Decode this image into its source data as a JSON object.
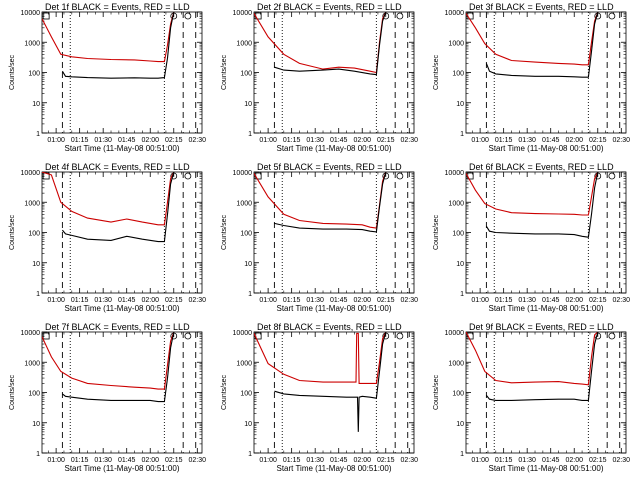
{
  "figure": {
    "colors": {
      "events": "#000000",
      "lld": "#cc0000",
      "background": "#ffffff"
    },
    "ytick_labels": [
      "1",
      "10",
      "100",
      "1000",
      "10000"
    ],
    "xtick_labels": [
      "01:00",
      "01:15",
      "01:30",
      "01:45",
      "02:00",
      "02:15",
      "02:30"
    ]
  },
  "chart_data": [
    {
      "type": "line",
      "title": "Det 1f BLACK = Events, RED = LLD",
      "xlabel": "Start Time (11-May-08 00:51:00)",
      "ylabel": "Counts/sec",
      "yscale": "log",
      "ylim": [
        1,
        10000
      ],
      "xlim": [
        "00:51",
        "02:33"
      ],
      "grid": false,
      "dashed_vlines": [
        "01:04",
        "02:21",
        "02:29"
      ],
      "dotted_vlines": [
        "01:09",
        "02:09"
      ],
      "box_marker": "00:53",
      "circle_markers": [
        "02:15",
        "02:24"
      ],
      "series": [
        {
          "name": "LLD",
          "x": [
            "00:51",
            "00:57",
            "01:03",
            "01:10",
            "01:20",
            "01:35",
            "01:50",
            "02:00",
            "02:05",
            "02:09",
            "02:11",
            "02:13",
            "02:15"
          ],
          "y": [
            6000,
            1500,
            400,
            330,
            290,
            270,
            260,
            240,
            230,
            230,
            800,
            4000,
            10000
          ]
        },
        {
          "name": "Events",
          "x": [
            "01:04",
            "01:06",
            "01:10",
            "01:20",
            "01:35",
            "01:50",
            "02:00",
            "02:05",
            "02:09",
            "02:11",
            "02:13",
            "02:15"
          ],
          "y": [
            110,
            75,
            72,
            68,
            65,
            67,
            65,
            65,
            68,
            300,
            3000,
            10000
          ]
        }
      ]
    },
    {
      "type": "line",
      "title": "Det 2f BLACK = Events, RED = LLD",
      "xlabel": "Start Time (11-May-08 00:51:00)",
      "ylabel": "Counts/sec",
      "yscale": "log",
      "ylim": [
        1,
        10000
      ],
      "xlim": [
        "00:51",
        "02:33"
      ],
      "grid": false,
      "dashed_vlines": [
        "01:04",
        "02:21",
        "02:29"
      ],
      "dotted_vlines": [
        "01:09",
        "02:09"
      ],
      "box_marker": "00:53",
      "circle_markers": [
        "02:15",
        "02:24"
      ],
      "series": [
        {
          "name": "LLD",
          "x": [
            "00:51",
            "01:00",
            "01:10",
            "01:20",
            "01:35",
            "01:45",
            "01:55",
            "02:05",
            "02:09",
            "02:11",
            "02:13",
            "02:15"
          ],
          "y": [
            9000,
            1500,
            400,
            200,
            130,
            150,
            140,
            110,
            100,
            1000,
            6000,
            10000
          ]
        },
        {
          "name": "Events",
          "x": [
            "01:04",
            "01:10",
            "01:20",
            "01:35",
            "01:45",
            "01:55",
            "02:05",
            "02:09",
            "02:11",
            "02:13",
            "02:15"
          ],
          "y": [
            150,
            120,
            110,
            120,
            130,
            110,
            90,
            85,
            800,
            5000,
            10000
          ]
        }
      ]
    },
    {
      "type": "line",
      "title": "Det 3f BLACK = Events, RED = LLD",
      "xlabel": "Start Time (11-May-08 00:51:00)",
      "ylabel": "Counts/sec",
      "yscale": "log",
      "ylim": [
        1,
        10000
      ],
      "xlim": [
        "00:51",
        "02:33"
      ],
      "grid": false,
      "dashed_vlines": [
        "01:04",
        "02:21",
        "02:29"
      ],
      "dotted_vlines": [
        "01:09",
        "02:09"
      ],
      "box_marker": "00:53",
      "circle_markers": [
        "02:15",
        "02:24"
      ],
      "series": [
        {
          "name": "LLD",
          "x": [
            "00:51",
            "00:57",
            "01:03",
            "01:10",
            "01:20",
            "01:35",
            "01:50",
            "02:00",
            "02:05",
            "02:09",
            "02:11",
            "02:13",
            "02:15"
          ],
          "y": [
            9000,
            3000,
            900,
            400,
            250,
            220,
            200,
            190,
            180,
            180,
            1000,
            5000,
            10000
          ]
        },
        {
          "name": "Events",
          "x": [
            "01:04",
            "01:06",
            "01:10",
            "01:20",
            "01:35",
            "01:50",
            "02:00",
            "02:05",
            "02:09",
            "02:11",
            "02:13",
            "02:15"
          ],
          "y": [
            200,
            110,
            90,
            80,
            75,
            75,
            72,
            70,
            70,
            500,
            4000,
            10000
          ]
        }
      ]
    },
    {
      "type": "line",
      "title": "Det 4f BLACK = Events, RED = LLD",
      "xlabel": "Start Time (11-May-08 00:51:00)",
      "ylabel": "Counts/sec",
      "yscale": "log",
      "ylim": [
        1,
        10000
      ],
      "xlim": [
        "00:51",
        "02:33"
      ],
      "grid": false,
      "dashed_vlines": [
        "01:04",
        "02:21",
        "02:29"
      ],
      "dotted_vlines": [
        "01:09",
        "02:09"
      ],
      "box_marker": "00:53",
      "circle_markers": [
        "02:15",
        "02:24"
      ],
      "series": [
        {
          "name": "LLD",
          "x": [
            "00:51",
            "00:57",
            "01:03",
            "01:10",
            "01:20",
            "01:35",
            "01:45",
            "01:55",
            "02:05",
            "02:09",
            "02:11",
            "02:13",
            "02:15"
          ],
          "y": [
            10000,
            8000,
            1000,
            500,
            300,
            220,
            280,
            220,
            180,
            180,
            1000,
            6000,
            10000
          ]
        },
        {
          "name": "Events",
          "x": [
            "01:04",
            "01:06",
            "01:10",
            "01:20",
            "01:35",
            "01:45",
            "01:55",
            "02:05",
            "02:09",
            "02:11",
            "02:13",
            "02:15"
          ],
          "y": [
            120,
            90,
            80,
            60,
            55,
            75,
            60,
            50,
            50,
            400,
            4000,
            10000
          ]
        }
      ]
    },
    {
      "type": "line",
      "title": "Det 5f BLACK = Events, RED = LLD",
      "xlabel": "Start Time (11-May-08 00:51:00)",
      "ylabel": "Counts/sec",
      "yscale": "log",
      "ylim": [
        1,
        10000
      ],
      "xlim": [
        "00:51",
        "02:33"
      ],
      "grid": false,
      "dashed_vlines": [
        "01:04",
        "02:21",
        "02:29"
      ],
      "dotted_vlines": [
        "01:09",
        "02:09"
      ],
      "box_marker": "00:53",
      "circle_markers": [
        "02:15",
        "02:24"
      ],
      "series": [
        {
          "name": "LLD",
          "x": [
            "00:51",
            "01:00",
            "01:10",
            "01:20",
            "01:35",
            "01:50",
            "02:00",
            "02:05",
            "02:09",
            "02:11",
            "02:13",
            "02:15"
          ],
          "y": [
            9000,
            1500,
            400,
            250,
            200,
            190,
            180,
            150,
            140,
            800,
            5000,
            10000
          ]
        },
        {
          "name": "Events",
          "x": [
            "01:04",
            "01:10",
            "01:20",
            "01:35",
            "01:50",
            "02:00",
            "02:05",
            "02:09",
            "02:11",
            "02:13",
            "02:15"
          ],
          "y": [
            200,
            170,
            140,
            130,
            130,
            125,
            110,
            105,
            700,
            4000,
            10000
          ]
        }
      ]
    },
    {
      "type": "line",
      "title": "Det 6f BLACK = Events, RED = LLD",
      "xlabel": "Start Time (11-May-08 00:51:00)",
      "ylabel": "Counts/sec",
      "yscale": "log",
      "ylim": [
        1,
        10000
      ],
      "xlim": [
        "00:51",
        "02:33"
      ],
      "grid": false,
      "dashed_vlines": [
        "01:04",
        "02:21",
        "02:29"
      ],
      "dotted_vlines": [
        "01:09",
        "02:09"
      ],
      "box_marker": "00:53",
      "circle_markers": [
        "02:15",
        "02:24"
      ],
      "series": [
        {
          "name": "LLD",
          "x": [
            "00:51",
            "00:57",
            "01:03",
            "01:10",
            "01:20",
            "01:35",
            "01:50",
            "02:00",
            "02:05",
            "02:09",
            "02:11",
            "02:13",
            "02:15"
          ],
          "y": [
            9000,
            2500,
            900,
            600,
            450,
            420,
            410,
            400,
            380,
            380,
            1500,
            6000,
            10000
          ]
        },
        {
          "name": "Events",
          "x": [
            "01:04",
            "01:06",
            "01:10",
            "01:20",
            "01:35",
            "01:50",
            "02:00",
            "02:05",
            "02:09",
            "02:11",
            "02:13",
            "02:15"
          ],
          "y": [
            160,
            110,
            100,
            95,
            90,
            90,
            85,
            75,
            70,
            400,
            3000,
            10000
          ]
        }
      ]
    },
    {
      "type": "line",
      "title": "Det 7f BLACK = Events, RED = LLD",
      "xlabel": "Start Time (11-May-08 00:51:00)",
      "ylabel": "Counts/sec",
      "yscale": "log",
      "ylim": [
        1,
        10000
      ],
      "xlim": [
        "00:51",
        "02:33"
      ],
      "grid": false,
      "dashed_vlines": [
        "01:04",
        "02:21",
        "02:29"
      ],
      "dotted_vlines": [
        "01:09",
        "02:09"
      ],
      "box_marker": "00:53",
      "circle_markers": [
        "02:15",
        "02:24"
      ],
      "series": [
        {
          "name": "LLD",
          "x": [
            "00:51",
            "00:57",
            "01:03",
            "01:10",
            "01:20",
            "01:35",
            "01:50",
            "02:00",
            "02:05",
            "02:09",
            "02:11",
            "02:13",
            "02:15"
          ],
          "y": [
            7000,
            1500,
            500,
            300,
            200,
            170,
            150,
            140,
            130,
            130,
            800,
            5000,
            10000
          ]
        },
        {
          "name": "Events",
          "x": [
            "01:04",
            "01:06",
            "01:10",
            "01:20",
            "01:35",
            "01:50",
            "02:00",
            "02:05",
            "02:09",
            "02:11",
            "02:13",
            "02:15"
          ],
          "y": [
            90,
            75,
            70,
            60,
            55,
            55,
            55,
            50,
            50,
            300,
            3000,
            10000
          ]
        }
      ]
    },
    {
      "type": "line",
      "title": "Det 8f BLACK = Events, RED = LLD",
      "xlabel": "Start Time (11-May-08 00:51:00)",
      "ylabel": "Counts/sec",
      "yscale": "log",
      "ylim": [
        1,
        10000
      ],
      "xlim": [
        "00:51",
        "02:33"
      ],
      "grid": false,
      "dashed_vlines": [
        "01:04",
        "02:21",
        "02:29"
      ],
      "dotted_vlines": [
        "01:09",
        "02:09"
      ],
      "box_marker": "00:53",
      "circle_markers": [
        "02:15",
        "02:24"
      ],
      "series": [
        {
          "name": "LLD",
          "x": [
            "00:51",
            "01:00",
            "01:10",
            "01:20",
            "01:35",
            "01:50",
            "01:56",
            "01:56.5",
            "01:57.5",
            "01:58",
            "02:00",
            "02:05",
            "02:09",
            "02:11",
            "02:13",
            "02:15"
          ],
          "y": [
            9000,
            900,
            400,
            250,
            220,
            220,
            220,
            9000,
            9000,
            200,
            200,
            200,
            200,
            1000,
            6000,
            10000
          ]
        },
        {
          "name": "Events",
          "x": [
            "01:04",
            "01:10",
            "01:20",
            "01:35",
            "01:50",
            "01:57",
            "01:57.5",
            "01:58",
            "02:00",
            "02:05",
            "02:09",
            "02:11",
            "02:13",
            "02:15"
          ],
          "y": [
            110,
            90,
            80,
            75,
            70,
            70,
            5,
            70,
            75,
            70,
            65,
            500,
            4000,
            10000
          ]
        }
      ]
    },
    {
      "type": "line",
      "title": "Det 9f BLACK = Events, RED = LLD",
      "xlabel": "Start Time (11-May-08 00:51:00)",
      "ylabel": "Counts/sec",
      "yscale": "log",
      "ylim": [
        1,
        10000
      ],
      "xlim": [
        "00:51",
        "02:33"
      ],
      "grid": false,
      "dashed_vlines": [
        "01:04",
        "02:21",
        "02:29"
      ],
      "dotted_vlines": [
        "01:09",
        "02:09"
      ],
      "box_marker": "00:53",
      "circle_markers": [
        "02:15",
        "02:24"
      ],
      "series": [
        {
          "name": "LLD",
          "x": [
            "00:51",
            "00:57",
            "01:03",
            "01:10",
            "01:20",
            "01:35",
            "01:50",
            "02:00",
            "02:05",
            "02:09",
            "02:11",
            "02:13",
            "02:15"
          ],
          "y": [
            10000,
            2500,
            500,
            250,
            210,
            220,
            230,
            200,
            190,
            180,
            1500,
            8000,
            10000
          ]
        },
        {
          "name": "Events",
          "x": [
            "01:04",
            "01:06",
            "01:10",
            "01:20",
            "01:35",
            "01:50",
            "02:00",
            "02:05",
            "02:09",
            "02:11",
            "02:13",
            "02:15"
          ],
          "y": [
            80,
            60,
            55,
            55,
            58,
            60,
            60,
            55,
            55,
            500,
            4000,
            10000
          ]
        }
      ]
    }
  ]
}
